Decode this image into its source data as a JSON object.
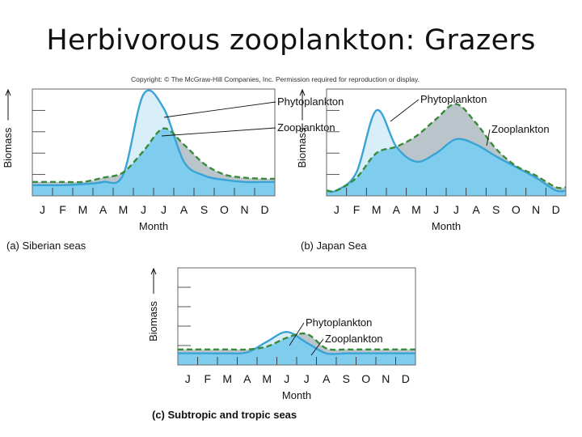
{
  "page": {
    "title": "Herbivorous zooplankton: Grazers",
    "copyright": "Copyright: © The McGraw-Hill Companies, Inc. Permission required for reproduction or display."
  },
  "colors": {
    "phytoplankton_line": "#3aa3d6",
    "phytoplankton_fill": "#d8eef9",
    "zooplankton_line": "#3a8a3a",
    "zooplankton_fill": "#7fcdee",
    "grazing_gap_fill": "#b9c5cb",
    "frame": "#666666"
  },
  "chart_data": [
    {
      "type": "area",
      "caption": "(a) Siberian seas",
      "xlabel": "Month",
      "ylabel": "Biomass",
      "x": [
        "J",
        "F",
        "M",
        "A",
        "M",
        "J",
        "J",
        "A",
        "S",
        "O",
        "N",
        "D"
      ],
      "ylim": [
        0,
        100
      ],
      "series": [
        {
          "name": "Phytoplankton",
          "values": [
            10,
            10,
            11,
            13,
            20,
            95,
            82,
            32,
            19,
            15,
            13,
            13
          ]
        },
        {
          "name": "Zooplankton",
          "values": [
            13,
            13,
            13,
            17,
            22,
            42,
            63,
            48,
            30,
            20,
            17,
            16
          ]
        }
      ]
    },
    {
      "type": "area",
      "caption": "(b) Japan Sea",
      "xlabel": "Month",
      "ylabel": "Biomass",
      "x": [
        "J",
        "F",
        "M",
        "A",
        "M",
        "J",
        "J",
        "A",
        "S",
        "O",
        "N",
        "D"
      ],
      "ylim": [
        0,
        100
      ],
      "series": [
        {
          "name": "Phytoplankton",
          "values": [
            5,
            22,
            80,
            46,
            32,
            40,
            53,
            48,
            37,
            27,
            17,
            5
          ]
        },
        {
          "name": "Zooplankton",
          "values": [
            5,
            17,
            40,
            46,
            56,
            72,
            86,
            68,
            44,
            28,
            19,
            8
          ]
        }
      ]
    },
    {
      "type": "area",
      "caption": "(c) Subtropic and tropic seas",
      "xlabel": "Month",
      "ylabel": "Biomass",
      "x": [
        "J",
        "F",
        "M",
        "A",
        "M",
        "J",
        "J",
        "A",
        "S",
        "O",
        "N",
        "D"
      ],
      "ylim": [
        0,
        100
      ],
      "series": [
        {
          "name": "Phytoplankton",
          "values": [
            12,
            12,
            12,
            13,
            24,
            34,
            23,
            12,
            12,
            12,
            12,
            12
          ]
        },
        {
          "name": "Zooplankton",
          "values": [
            16,
            16,
            16,
            16,
            19,
            28,
            32,
            17,
            16,
            16,
            16,
            16
          ]
        }
      ]
    }
  ]
}
